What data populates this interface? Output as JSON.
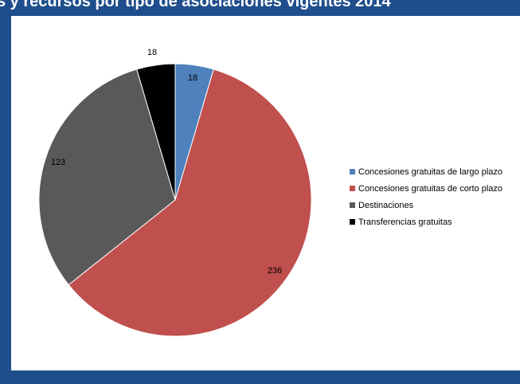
{
  "header": {
    "title": "s y recursos por tipo de asociaciones vigentes 2014"
  },
  "chart_data": {
    "type": "pie",
    "title": "",
    "start_angle_deg": 0,
    "direction": "clockwise",
    "legend_position": "right",
    "slices": [
      {
        "label": "Concesiones gratuitas de largo plazo",
        "value": 18,
        "color": "#4f81bd",
        "data_label": "18"
      },
      {
        "label": "Concesiones gratuitas de corto plazo",
        "value": 236,
        "color": "#c0504d",
        "data_label": "236"
      },
      {
        "label": "Destinaciones",
        "value": 123,
        "color": "#595959",
        "data_label": "123"
      },
      {
        "label": "Transferencias gratuitas",
        "value": 18,
        "color": "#000000",
        "data_label": "18"
      }
    ]
  }
}
